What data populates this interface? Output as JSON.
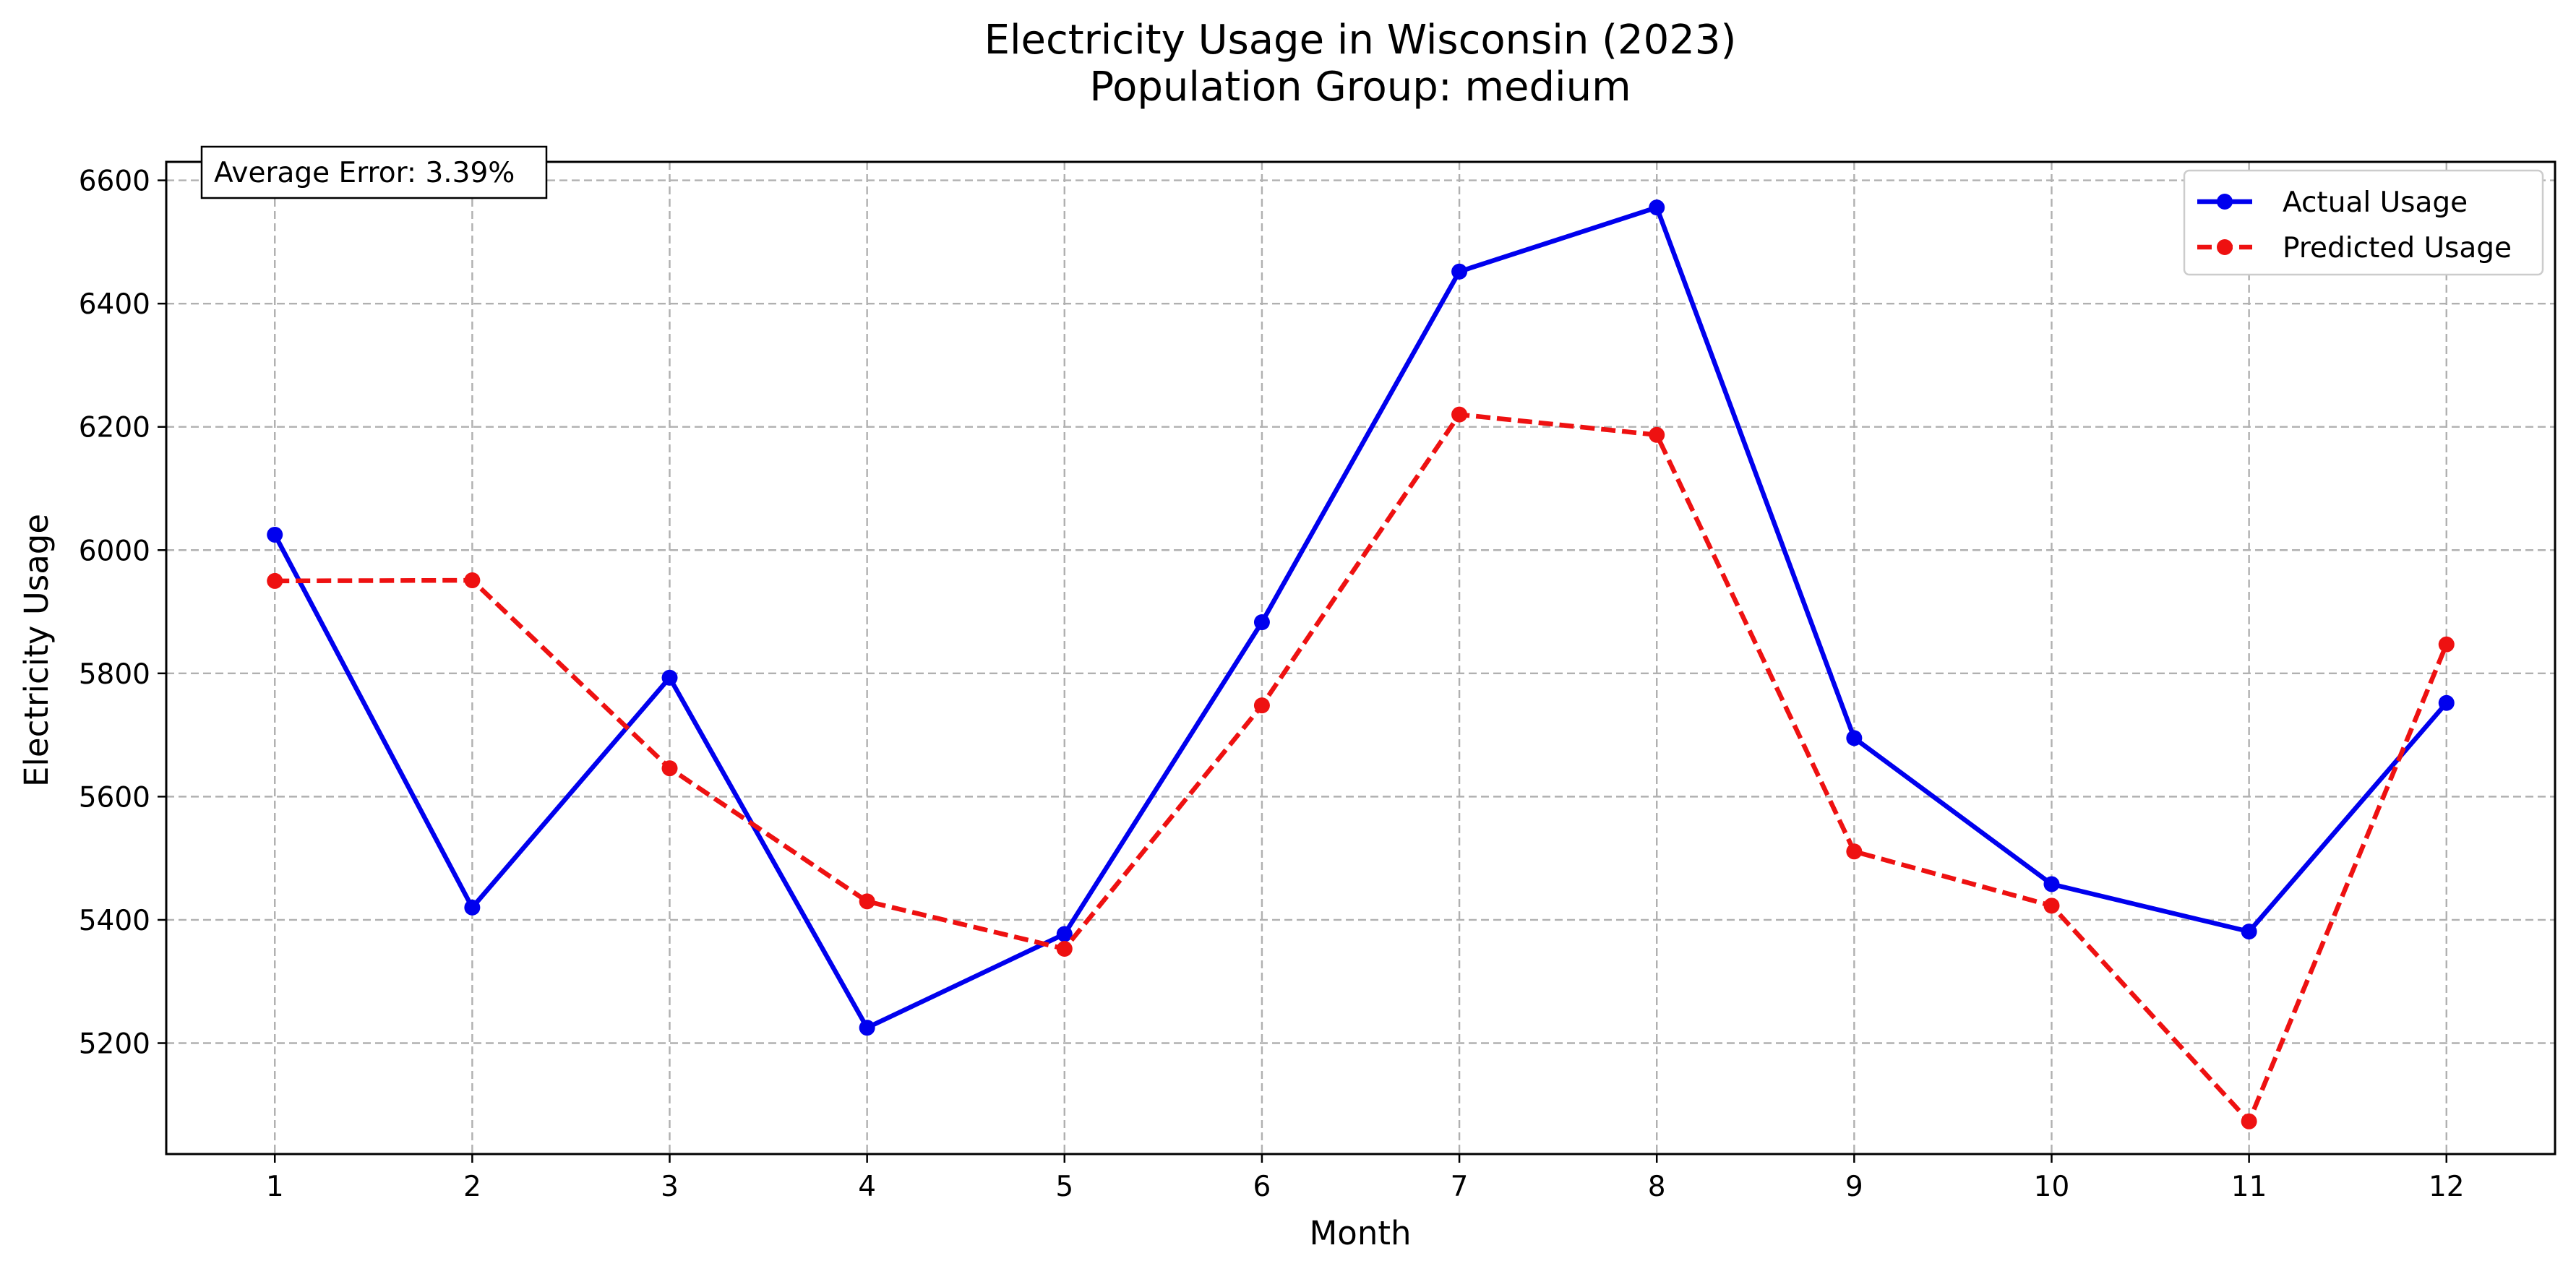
{
  "chart_data": {
    "type": "line",
    "title": "Electricity Usage in Wisconsin (2023)",
    "subtitle": "Population Group: medium",
    "xlabel": "Month",
    "ylabel": "Electricity Usage",
    "x": [
      1,
      2,
      3,
      4,
      5,
      6,
      7,
      8,
      9,
      10,
      11,
      12
    ],
    "x_tick_labels": [
      "1",
      "2",
      "3",
      "4",
      "5",
      "6",
      "7",
      "8",
      "9",
      "10",
      "11",
      "12"
    ],
    "xlim": [
      0.45,
      12.55
    ],
    "ylim": [
      5020,
      6630
    ],
    "y_ticks": [
      5200,
      5400,
      5600,
      5800,
      6000,
      6200,
      6400,
      6600
    ],
    "y_tick_labels": [
      "5200",
      "5400",
      "5600",
      "5800",
      "6000",
      "6200",
      "6400",
      "6600"
    ],
    "grid": true,
    "legend_position": "top-right",
    "annotation": "Average Error: 3.39%",
    "series": [
      {
        "name": "Actual Usage",
        "color": "#0000ee",
        "line_style": "solid",
        "values": [
          6025,
          5420,
          5793,
          5225,
          5377,
          5883,
          6452,
          6556,
          5695,
          5458,
          5381,
          5752
        ]
      },
      {
        "name": "Predicted Usage",
        "color": "#ee1111",
        "line_style": "dashed",
        "values": [
          5950,
          5951,
          5646,
          5430,
          5353,
          5748,
          6220,
          6187,
          5511,
          5423,
          5073,
          5847
        ]
      }
    ]
  }
}
